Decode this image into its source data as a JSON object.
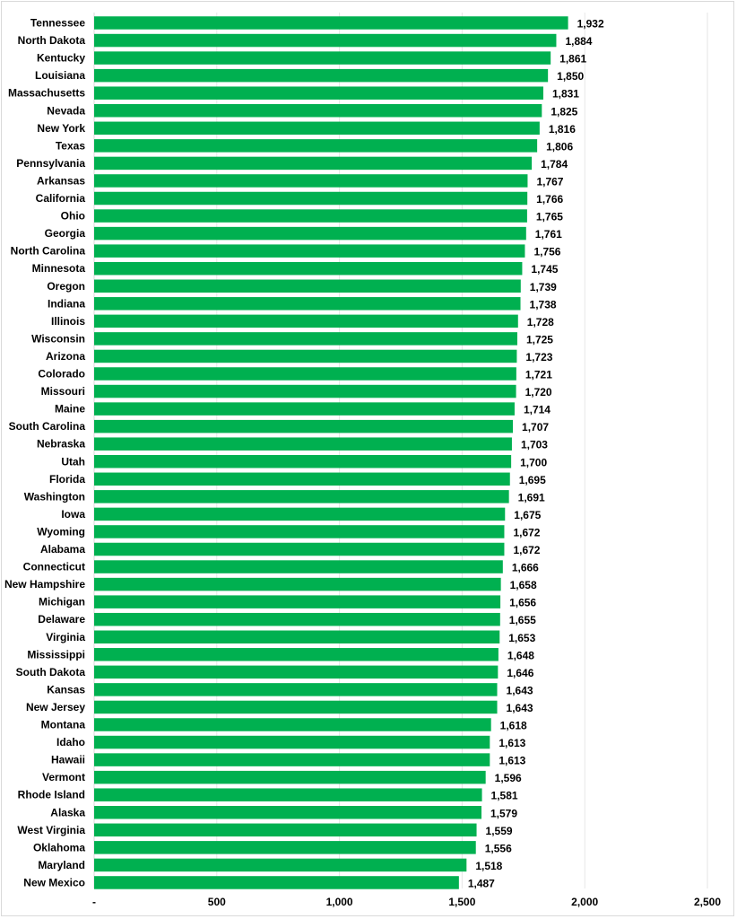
{
  "chart_data": {
    "type": "bar",
    "orientation": "horizontal",
    "title": "",
    "xlabel": "",
    "ylabel": "",
    "xlim": [
      0,
      2500
    ],
    "xticks": [
      0,
      500,
      1000,
      1500,
      2000,
      2500
    ],
    "xtick_labels": [
      "-",
      "500",
      "1,000",
      "1,500",
      "2,000",
      "2,500"
    ],
    "grid": true,
    "bar_color": "#00b050",
    "categories": [
      "Tennessee",
      "North Dakota",
      "Kentucky",
      "Louisiana",
      "Massachusetts",
      "Nevada",
      "New York",
      "Texas",
      "Pennsylvania",
      "Arkansas",
      "California",
      "Ohio",
      "Georgia",
      "North Carolina",
      "Minnesota",
      "Oregon",
      "Indiana",
      "Illinois",
      "Wisconsin",
      "Arizona",
      "Colorado",
      "Missouri",
      "Maine",
      "South Carolina",
      "Nebraska",
      "Utah",
      "Florida",
      "Washington",
      "Iowa",
      "Wyoming",
      "Alabama",
      "Connecticut",
      "New Hampshire",
      "Michigan",
      "Delaware",
      "Virginia",
      "Mississippi",
      "South Dakota",
      "Kansas",
      "New Jersey",
      "Montana",
      "Idaho",
      "Hawaii",
      "Vermont",
      "Rhode Island",
      "Alaska",
      "West Virginia",
      "Oklahoma",
      "Maryland",
      "New Mexico"
    ],
    "values": [
      1932,
      1884,
      1861,
      1850,
      1831,
      1825,
      1816,
      1806,
      1784,
      1767,
      1766,
      1765,
      1761,
      1756,
      1745,
      1739,
      1738,
      1728,
      1725,
      1723,
      1721,
      1720,
      1714,
      1707,
      1703,
      1700,
      1695,
      1691,
      1675,
      1672,
      1672,
      1666,
      1658,
      1656,
      1655,
      1653,
      1648,
      1646,
      1643,
      1643,
      1618,
      1613,
      1613,
      1596,
      1581,
      1579,
      1559,
      1556,
      1518,
      1487
    ],
    "value_labels": [
      "1,932",
      "1,884",
      "1,861",
      "1,850",
      "1,831",
      "1,825",
      "1,816",
      "1,806",
      "1,784",
      "1,767",
      "1,766",
      "1,765",
      "1,761",
      "1,756",
      "1,745",
      "1,739",
      "1,738",
      "1,728",
      "1,725",
      "1,723",
      "1,721",
      "1,720",
      "1,714",
      "1,707",
      "1,703",
      "1,700",
      "1,695",
      "1,691",
      "1,675",
      "1,672",
      "1,672",
      "1,666",
      "1,658",
      "1,656",
      "1,655",
      "1,653",
      "1,648",
      "1,646",
      "1,643",
      "1,643",
      "1,618",
      "1,613",
      "1,613",
      "1,596",
      "1,581",
      "1,579",
      "1,559",
      "1,556",
      "1,518",
      "1,487"
    ]
  }
}
